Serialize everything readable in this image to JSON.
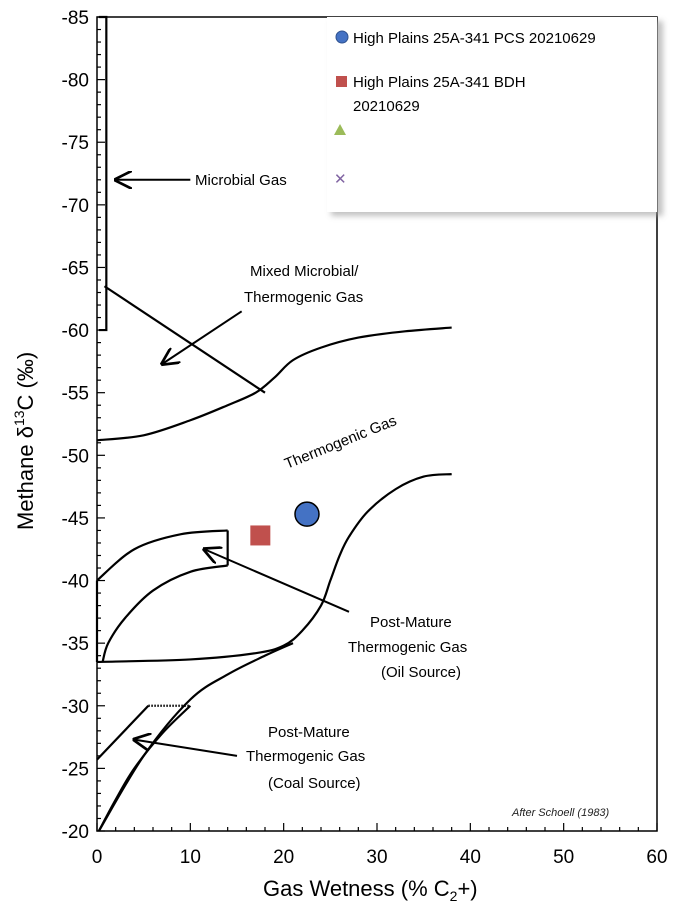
{
  "chart_data": {
    "type": "scatter",
    "xlabel": "Gas Wetness (% C",
    "xlabel_sub": "2",
    "xlabel_tail": "+)",
    "ylabel": "Methane  δ",
    "ylabel_sup": "13",
    "ylabel_tail": "C (‰)",
    "xlim": [
      0,
      60
    ],
    "ylim": [
      -85,
      -20
    ],
    "x_ticks": [
      0,
      10,
      20,
      30,
      40,
      50,
      60
    ],
    "y_ticks": [
      -85,
      -80,
      -75,
      -70,
      -65,
      -60,
      -55,
      -50,
      -45,
      -40,
      -35,
      -30,
      -25,
      -20
    ],
    "y_axis": "reversed (most negative at top)",
    "grid": false,
    "legend_position": "top-right",
    "series": [
      {
        "name": "High Plains 25A-341 PCS 20210629",
        "marker": "circle",
        "color": "#4472C4",
        "points": [
          [
            22.5,
            -45.3
          ]
        ]
      },
      {
        "name": "High Plains 25A-341 BDH 20210629",
        "marker": "square",
        "color": "#C0504D",
        "points": [
          [
            17.5,
            -43.6
          ]
        ]
      },
      {
        "name": "",
        "marker": "triangle",
        "color": "#9BBB59",
        "points": []
      },
      {
        "name": "",
        "marker": "x",
        "color": "#8064A2",
        "points": []
      }
    ],
    "annotations": {
      "microbial": "Microbial Gas",
      "mixed_line1": "Mixed Microbial/",
      "mixed_line2": "Thermogenic Gas",
      "thermogenic": "Thermogenic Gas",
      "oil_line1": "Post-Mature",
      "oil_line2": "Thermogenic Gas",
      "oil_line3": "(Oil Source)",
      "coal_line1": "Post-Mature",
      "coal_line2": "Thermogenic Gas",
      "coal_line3": "(Coal Source)",
      "credit": "After Schoell (1983)"
    },
    "legend_labels": {
      "pcs": "High Plains 25A-341 PCS 20210629",
      "bdh_line1": "High Plains 25A-341 BDH",
      "bdh_line2": "20210629"
    },
    "curves": {
      "microbial_box": [
        [
          0.2,
          -85
        ],
        [
          1,
          -85
        ],
        [
          1,
          -60
        ],
        [
          0.2,
          -60
        ]
      ],
      "mixed_diagonal": [
        [
          0.8,
          -63.5
        ],
        [
          18,
          -55
        ]
      ],
      "thermo_upper": [
        [
          0,
          -51.2
        ],
        [
          5,
          -51.6
        ],
        [
          10,
          -52.8
        ],
        [
          14,
          -54.0
        ],
        [
          17,
          -55.0
        ],
        [
          19,
          -56.2
        ],
        [
          21,
          -57.6
        ],
        [
          24,
          -58.6
        ],
        [
          28,
          -59.4
        ],
        [
          33,
          -59.9
        ],
        [
          38,
          -60.2
        ]
      ],
      "thermo_lower": [
        [
          0,
          -33.5
        ],
        [
          10,
          -33.7
        ],
        [
          17,
          -34.2
        ],
        [
          20,
          -34.8
        ],
        [
          22,
          -36.0
        ],
        [
          24,
          -38.0
        ],
        [
          25,
          -40.0
        ],
        [
          26,
          -42.0
        ],
        [
          27,
          -43.5
        ],
        [
          29,
          -45.5
        ],
        [
          32,
          -47.3
        ],
        [
          35,
          -48.3
        ],
        [
          38,
          -48.5
        ]
      ],
      "oil_inner_upper": [
        [
          0,
          -40.0
        ],
        [
          4,
          -42.5
        ],
        [
          9,
          -43.7
        ],
        [
          14,
          -44.0
        ]
      ],
      "oil_vertical": [
        [
          14,
          -44.0
        ],
        [
          14,
          -41.2
        ]
      ],
      "oil_inner_lower": [
        [
          14,
          -41.2
        ],
        [
          10,
          -40.7
        ],
        [
          6,
          -39.2
        ],
        [
          3,
          -37.0
        ],
        [
          1.2,
          -35.0
        ],
        [
          0.6,
          -33.5
        ]
      ],
      "coal_diag": [
        [
          0,
          -25.7
        ],
        [
          5.5,
          -30.0
        ]
      ],
      "coal_top": [
        [
          5.5,
          -30.0
        ],
        [
          10,
          -30.0
        ]
      ],
      "coal_curve": [
        [
          10,
          -30.0
        ],
        [
          7,
          -27.8
        ],
        [
          4,
          -25.0
        ],
        [
          2,
          -22.5
        ],
        [
          0.2,
          -20.0
        ]
      ],
      "coal_outer": [
        [
          0.2,
          -20.0
        ],
        [
          5,
          -26.0
        ],
        [
          10,
          -30.5
        ],
        [
          14,
          -32.5
        ],
        [
          18,
          -34.0
        ],
        [
          21,
          -35.0
        ]
      ]
    },
    "arrows": [
      {
        "name": "microbial-arrow",
        "from": [
          10,
          -72
        ],
        "to": [
          2,
          -72
        ]
      },
      {
        "name": "mixed-arrow",
        "from": [
          15.5,
          -61.5
        ],
        "to": [
          7,
          -57.3
        ]
      },
      {
        "name": "oil-arrow",
        "from": [
          27,
          -37.5
        ],
        "to": [
          11.5,
          -42.5
        ]
      },
      {
        "name": "coal-arrow",
        "from": [
          15,
          -26.0
        ],
        "to": [
          4,
          -27.3
        ]
      }
    ]
  }
}
